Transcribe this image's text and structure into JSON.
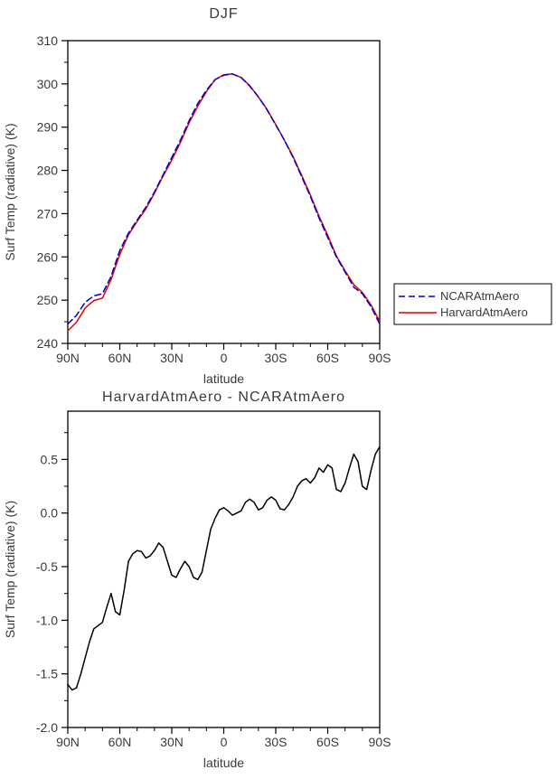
{
  "figure": {
    "background": "#ffffff",
    "frame_color": "#000000",
    "text_color": "#3a3a3a"
  },
  "chart_data": [
    {
      "type": "line",
      "title": "DJF",
      "xlabel": "latitude",
      "ylabel": "Surf Temp (radiative) (K)",
      "xlim": [
        90,
        -90
      ],
      "ylim": [
        240,
        310
      ],
      "grid": false,
      "legend_position": "right-outside",
      "xticks": [
        {
          "v": 90,
          "label": "90N"
        },
        {
          "v": 60,
          "label": "60N"
        },
        {
          "v": 30,
          "label": "30N"
        },
        {
          "v": 0,
          "label": "0"
        },
        {
          "v": -30,
          "label": "30S"
        },
        {
          "v": -60,
          "label": "60S"
        },
        {
          "v": -90,
          "label": "90S"
        }
      ],
      "yticks": [
        {
          "v": 240,
          "label": "240"
        },
        {
          "v": 250,
          "label": "250"
        },
        {
          "v": 260,
          "label": "260"
        },
        {
          "v": 270,
          "label": "270"
        },
        {
          "v": 280,
          "label": "280"
        },
        {
          "v": 290,
          "label": "290"
        },
        {
          "v": 300,
          "label": "300"
        },
        {
          "v": 310,
          "label": "310"
        }
      ],
      "xminor_step": 10,
      "yminor_step": 5,
      "x": [
        90,
        85,
        80,
        75,
        70,
        65,
        60,
        55,
        50,
        45,
        40,
        35,
        30,
        25,
        20,
        15,
        10,
        5,
        0,
        -5,
        -10,
        -15,
        -20,
        -25,
        -30,
        -35,
        -40,
        -45,
        -50,
        -55,
        -60,
        -65,
        -70,
        -75,
        -80,
        -85,
        -90
      ],
      "series": [
        {
          "name": "NCARAtmAero",
          "color": "#0000cc",
          "dash": "7,4",
          "values": [
            244.5,
            246.5,
            249.5,
            251.0,
            251.5,
            255.5,
            261.5,
            265.5,
            268.5,
            271.5,
            275.0,
            279.0,
            283.0,
            287.0,
            291.5,
            295.5,
            298.5,
            301.0,
            302.0,
            302.3,
            301.5,
            299.5,
            297.0,
            294.0,
            290.5,
            287.0,
            283.0,
            278.5,
            274.0,
            269.0,
            264.5,
            260.0,
            256.5,
            253.0,
            251.5,
            248.5,
            244.5
          ]
        },
        {
          "name": "HarvardAtmAero",
          "color": "#e60000",
          "dash": "",
          "values": [
            242.9,
            244.9,
            248.2,
            249.9,
            250.5,
            254.8,
            260.6,
            265.1,
            268.2,
            271.1,
            274.7,
            278.7,
            282.4,
            286.5,
            291.0,
            294.9,
            298.2,
            301.0,
            302.1,
            302.3,
            301.5,
            299.6,
            297.0,
            294.1,
            290.6,
            287.0,
            283.2,
            278.8,
            274.3,
            269.4,
            265.0,
            260.2,
            256.8,
            253.6,
            251.8,
            248.9,
            245.1
          ]
        }
      ],
      "legend": {
        "entries": [
          "NCARAtmAero",
          "HarvardAtmAero"
        ]
      }
    },
    {
      "type": "line",
      "title": "HarvardAtmAero - NCARAtmAero",
      "xlabel": "latitude",
      "ylabel": "Surf Temp (radiative) (K)",
      "xlim": [
        90,
        -90
      ],
      "ylim": [
        -2.0,
        0.95
      ],
      "grid": false,
      "xticks": [
        {
          "v": 90,
          "label": "90N"
        },
        {
          "v": 60,
          "label": "60N"
        },
        {
          "v": 30,
          "label": "30N"
        },
        {
          "v": 0,
          "label": "0"
        },
        {
          "v": -30,
          "label": "30S"
        },
        {
          "v": -60,
          "label": "60S"
        },
        {
          "v": -90,
          "label": "90S"
        }
      ],
      "yticks": [
        {
          "v": 0.5,
          "label": "0.5"
        },
        {
          "v": 0.0,
          "label": "0.0"
        },
        {
          "v": -0.5,
          "label": "-0.5"
        },
        {
          "v": -1.0,
          "label": "-1.0"
        },
        {
          "v": -1.5,
          "label": "-1.5"
        },
        {
          "v": -2.0,
          "label": "-2.0"
        }
      ],
      "xminor_step": 10,
      "yminor_step": 0.25,
      "x": [
        90,
        87.5,
        85,
        82.5,
        80,
        77.5,
        75,
        72.5,
        70,
        67.5,
        65,
        62.5,
        60,
        57.5,
        55,
        52.5,
        50,
        47.5,
        45,
        42.5,
        40,
        37.5,
        35,
        32.5,
        30,
        27.5,
        25,
        22.5,
        20,
        17.5,
        15,
        12.5,
        10,
        7.5,
        5,
        2.5,
        0,
        -2.5,
        -5,
        -7.5,
        -10,
        -12.5,
        -15,
        -17.5,
        -20,
        -22.5,
        -25,
        -27.5,
        -30,
        -32.5,
        -35,
        -37.5,
        -40,
        -42.5,
        -45,
        -47.5,
        -50,
        -52.5,
        -55,
        -57.5,
        -60,
        -62.5,
        -65,
        -67.5,
        -70,
        -72.5,
        -75,
        -77.5,
        -80,
        -82.5,
        -85,
        -87.5,
        -90
      ],
      "series": [
        {
          "name": "HarvardAtmAero - NCARAtmAero",
          "color": "#000000",
          "dash": "",
          "values": [
            -1.6,
            -1.65,
            -1.63,
            -1.5,
            -1.35,
            -1.2,
            -1.08,
            -1.05,
            -1.02,
            -0.88,
            -0.75,
            -0.92,
            -0.95,
            -0.72,
            -0.45,
            -0.38,
            -0.35,
            -0.36,
            -0.42,
            -0.4,
            -0.35,
            -0.28,
            -0.32,
            -0.45,
            -0.58,
            -0.6,
            -0.52,
            -0.45,
            -0.5,
            -0.6,
            -0.62,
            -0.55,
            -0.35,
            -0.15,
            -0.05,
            0.03,
            0.05,
            0.02,
            -0.02,
            0.0,
            0.02,
            0.1,
            0.13,
            0.1,
            0.03,
            0.05,
            0.12,
            0.15,
            0.12,
            0.04,
            0.03,
            0.08,
            0.15,
            0.25,
            0.3,
            0.32,
            0.28,
            0.33,
            0.42,
            0.38,
            0.45,
            0.42,
            0.22,
            0.2,
            0.28,
            0.42,
            0.55,
            0.48,
            0.25,
            0.22,
            0.4,
            0.55,
            0.62
          ]
        }
      ]
    }
  ]
}
